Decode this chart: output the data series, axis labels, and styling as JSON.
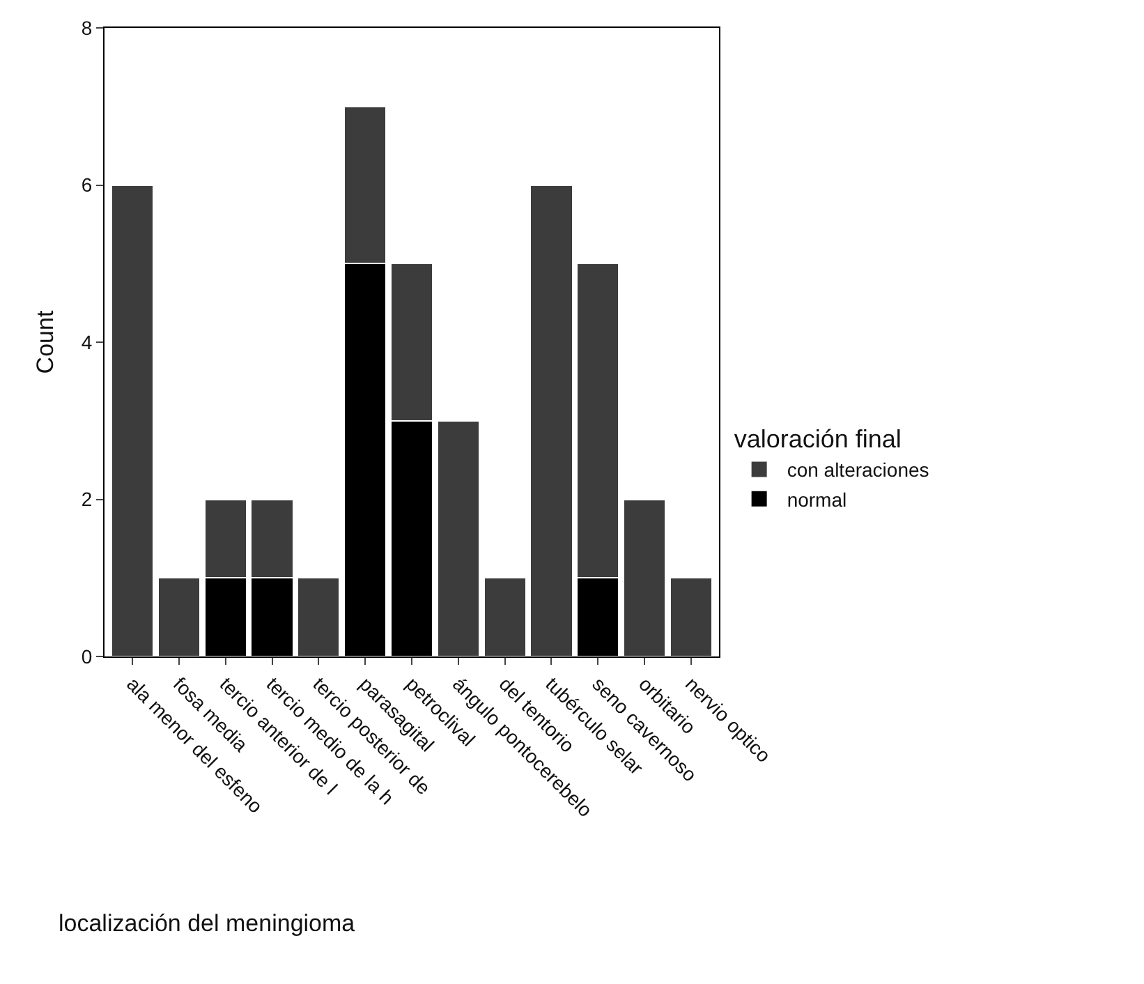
{
  "chart_data": {
    "type": "bar",
    "stacked": true,
    "xlabel": "localización del meningioma",
    "ylabel": "Count",
    "legend_title": "valoración final",
    "categories": [
      "ala menor del esfeno",
      "fosa media",
      "tercio anterior de l",
      "tercio medio de la h",
      "tercio posterior de",
      "parasagital",
      "petroclival",
      "ángulo pontocerebelo",
      "del tentorio",
      "tubérculo selar",
      "seno cavernoso",
      "orbitario",
      "nervio optico"
    ],
    "series": [
      {
        "name": "normal",
        "color": "#000000",
        "values": [
          0,
          0,
          1,
          1,
          0,
          5,
          3,
          0,
          0,
          0,
          1,
          0,
          0
        ]
      },
      {
        "name": "con alteraciones",
        "color": "#3c3c3c",
        "values": [
          6,
          1,
          1,
          1,
          1,
          2,
          2,
          3,
          1,
          6,
          4,
          2,
          1
        ]
      }
    ],
    "ylim": [
      0,
      8
    ],
    "yticks": [
      0,
      2,
      4,
      6,
      8
    ],
    "legend": "right"
  }
}
